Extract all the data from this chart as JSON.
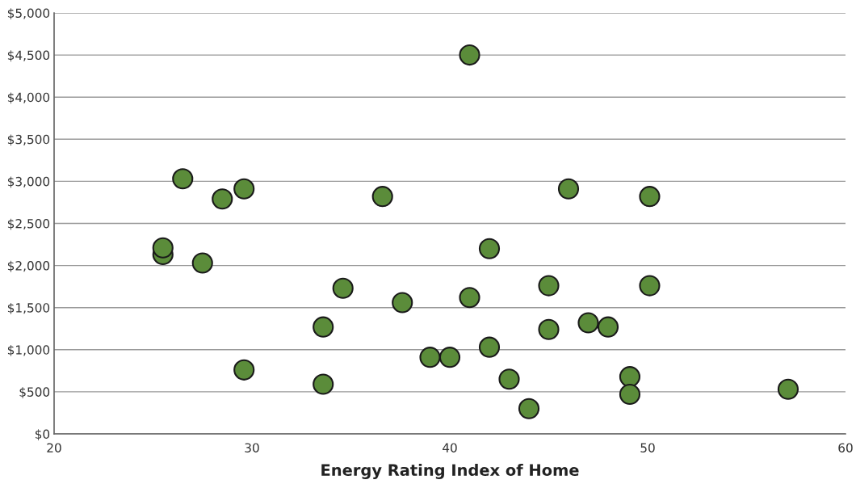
{
  "chart_data": {
    "type": "scatter",
    "xlabel": "Energy Rating Index of Home",
    "x": [
      26.5,
      28.5,
      29.6,
      36.6,
      41.0,
      46.0,
      50.1,
      25.5,
      25.5,
      27.5,
      34.6,
      37.6,
      33.6,
      29.6,
      33.6,
      42.0,
      45.0,
      50.1,
      41.0,
      47.0,
      48.0,
      45.0,
      42.0,
      39.0,
      40.0,
      43.0,
      44.0,
      49.1,
      49.1,
      57.1
    ],
    "values": [
      3030,
      2790,
      2910,
      2820,
      4500,
      2910,
      2820,
      2130,
      2210,
      2030,
      1730,
      1560,
      1270,
      760,
      590,
      2200,
      1760,
      1760,
      1620,
      1320,
      1270,
      1240,
      1030,
      910,
      910,
      650,
      300,
      680,
      470,
      530
    ],
    "color": "#5b8c3a",
    "marker": "circle",
    "xlim": [
      20,
      60
    ],
    "xticks": [
      20,
      30,
      40,
      50,
      60
    ],
    "ylim": [
      0,
      5000
    ],
    "yticks": [
      {
        "value": 0,
        "label": "$0"
      },
      {
        "value": 500,
        "label": "$500"
      },
      {
        "value": 1000,
        "label": "$1,000"
      },
      {
        "value": 1500,
        "label": "$1,500"
      },
      {
        "value": 2000,
        "label": "$2,000"
      },
      {
        "value": 2500,
        "label": "$2,500"
      },
      {
        "value": 3000,
        "label": "$3,000"
      },
      {
        "value": 3500,
        "label": "$3,500"
      },
      {
        "value": 4000,
        "label": "$4,000"
      },
      {
        "value": 4500,
        "label": "$4,500"
      },
      {
        "value": 5000,
        "label": "$5,000"
      }
    ],
    "grid": "y"
  }
}
